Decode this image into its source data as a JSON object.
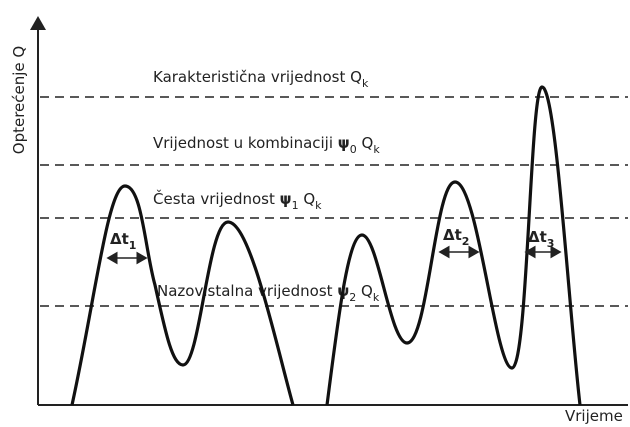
{
  "axes": {
    "y_label": "Opterećenje Q",
    "x_label": "Vrijeme"
  },
  "levels": [
    {
      "label": "Karakteristična vrijednost",
      "symbol": "Q",
      "sub": "k"
    },
    {
      "label": "Vrijednost u kombinaciji",
      "psi": "ψ",
      "psi_sub": "0",
      "symbol": "Q",
      "sub": "k"
    },
    {
      "label": "Česta vrijednost",
      "psi": "ψ",
      "psi_sub": "1",
      "symbol": "Q",
      "sub": "k"
    },
    {
      "label": "Nazovistalna vrijednost",
      "psi": "ψ",
      "psi_sub": "2",
      "symbol": "Q",
      "sub": "k"
    }
  ],
  "intervals": [
    {
      "text": "Δt",
      "sub": "1"
    },
    {
      "text": "Δt",
      "sub": "2"
    },
    {
      "text": "Δt",
      "sub": "3"
    }
  ]
}
